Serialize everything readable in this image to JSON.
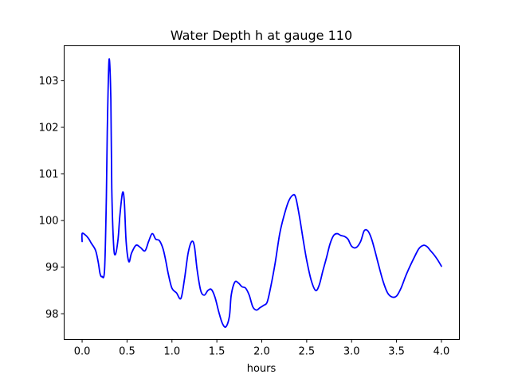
{
  "chart_data": {
    "type": "line",
    "title": "Water Depth h at gauge 110",
    "xlabel": "hours",
    "ylabel": "",
    "xlim": [
      -0.2,
      4.2
    ],
    "ylim": [
      97.45,
      103.75
    ],
    "xticks": [
      0.0,
      0.5,
      1.0,
      1.5,
      2.0,
      2.5,
      3.0,
      3.5,
      4.0
    ],
    "xtick_labels": [
      "0.0",
      "0.5",
      "1.0",
      "1.5",
      "2.0",
      "2.5",
      "3.0",
      "3.5",
      "4.0"
    ],
    "yticks": [
      98,
      99,
      100,
      101,
      102,
      103
    ],
    "ytick_labels": [
      "98",
      "99",
      "100",
      "101",
      "102",
      "103"
    ],
    "grid": false,
    "series": [
      {
        "name": "",
        "color": "#0000ff",
        "x": [
          0.0,
          0.0,
          0.03,
          0.07,
          0.1,
          0.15,
          0.18,
          0.2,
          0.22,
          0.25,
          0.27,
          0.28,
          0.3,
          0.32,
          0.33,
          0.35,
          0.37,
          0.4,
          0.42,
          0.45,
          0.47,
          0.49,
          0.52,
          0.55,
          0.6,
          0.65,
          0.7,
          0.74,
          0.78,
          0.82,
          0.86,
          0.9,
          0.93,
          0.96,
          1.0,
          1.05,
          1.1,
          1.14,
          1.18,
          1.22,
          1.25,
          1.28,
          1.32,
          1.36,
          1.4,
          1.44,
          1.48,
          1.52,
          1.56,
          1.6,
          1.64,
          1.66,
          1.7,
          1.74,
          1.78,
          1.82,
          1.86,
          1.9,
          1.94,
          1.98,
          2.02,
          2.06,
          2.1,
          2.15,
          2.2,
          2.25,
          2.3,
          2.35,
          2.38,
          2.42,
          2.46,
          2.5,
          2.55,
          2.6,
          2.64,
          2.68,
          2.72,
          2.76,
          2.8,
          2.84,
          2.88,
          2.92,
          2.96,
          3.0,
          3.05,
          3.1,
          3.14,
          3.18,
          3.22,
          3.26,
          3.3,
          3.35,
          3.4,
          3.45,
          3.5,
          3.55,
          3.6,
          3.65,
          3.7,
          3.75,
          3.8,
          3.84,
          3.88,
          3.92,
          3.96,
          4.0
        ],
        "y": [
          99.55,
          99.72,
          99.7,
          99.62,
          99.52,
          99.36,
          99.1,
          98.86,
          98.8,
          98.95,
          100.5,
          101.9,
          103.45,
          102.6,
          100.7,
          99.5,
          99.27,
          99.6,
          100.1,
          100.6,
          100.4,
          99.55,
          99.12,
          99.3,
          99.47,
          99.42,
          99.35,
          99.55,
          99.72,
          99.6,
          99.57,
          99.4,
          99.15,
          98.85,
          98.55,
          98.45,
          98.33,
          98.75,
          99.3,
          99.55,
          99.45,
          98.95,
          98.5,
          98.4,
          98.5,
          98.52,
          98.35,
          98.05,
          97.8,
          97.72,
          97.95,
          98.4,
          98.68,
          98.66,
          98.58,
          98.55,
          98.4,
          98.15,
          98.08,
          98.13,
          98.18,
          98.25,
          98.58,
          99.1,
          99.72,
          100.12,
          100.42,
          100.55,
          100.48,
          100.08,
          99.6,
          99.15,
          98.72,
          98.5,
          98.62,
          98.92,
          99.2,
          99.5,
          99.68,
          99.72,
          99.68,
          99.66,
          99.6,
          99.45,
          99.42,
          99.55,
          99.78,
          99.78,
          99.62,
          99.35,
          99.05,
          98.7,
          98.45,
          98.36,
          98.38,
          98.55,
          98.8,
          99.02,
          99.22,
          99.4,
          99.47,
          99.44,
          99.35,
          99.26,
          99.15,
          99.02
        ]
      }
    ]
  }
}
